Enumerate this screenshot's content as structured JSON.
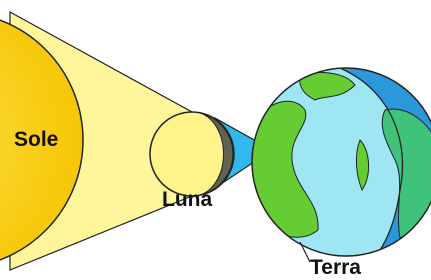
{
  "labels": {
    "sun": "Sole",
    "moon": "Luna",
    "earth": "Terra"
  }
}
